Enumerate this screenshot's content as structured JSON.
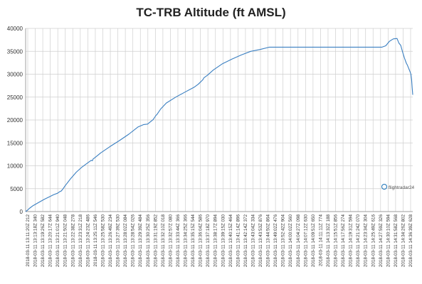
{
  "chart_data": {
    "type": "line",
    "title": "TC-TRB Altitude (ft AMSL)",
    "xlabel": "",
    "ylabel": "",
    "ylim": [
      0,
      40000
    ],
    "yticks": [
      "0",
      "5000",
      "10000",
      "15000",
      "20000",
      "25000",
      "30000",
      "35000",
      "40000"
    ],
    "grid": true,
    "line_color": "#3a7fc1",
    "x_tick_labels": [
      "2018-03-11 13:11:20Z 212",
      "2018-03-11 13:13:18Z 340",
      "2018-03-11 13:19:26Z 582",
      "2018-03-11 13:20:17Z 644",
      "2018-03-11 13:21:01Z 940",
      "2018-03-11 13:21:50Z 048",
      "2018-03-11 13:22:38Z 278",
      "2018-03-11 13:23:31Z 218",
      "2018-03-11 13:24:23Z 486",
      "2018-03-11 13:25:11Z 546",
      "2018-03-11 13:25:58Z 530",
      "2018-03-11 13:26:49Z 234",
      "2018-03-11 13:27:39Z 530",
      "2018-03-11 13:28:02Z 084",
      "2018-03-11 13:28:54Z 026",
      "2018-03-11 13:29:39Z 484",
      "2018-03-11 13:30:25Z 356",
      "2018-03-11 13:31:19Z 852",
      "2018-03-11 13:32:10Z 018",
      "2018-03-11 13:32:57Z 080",
      "2018-03-11 13:33:44Z 366",
      "2018-03-11 13:34:25Z 366",
      "2018-03-11 13:35:15Z 544",
      "2018-03-11 13:36:04Z 586",
      "2018-03-11 13:37:18Z 970",
      "2018-03-11 13:38:17Z 894",
      "2018-03-11 13:39:15Z 030",
      "2018-03-11 13:40:15Z 464",
      "2018-03-11 13:41:14Z 896",
      "2018-03-11 13:42:14Z 372",
      "2018-03-11 13:43:04Z 334",
      "2018-03-11 13:43:53Z 876",
      "2018-03-11 13:44:50Z 864",
      "2018-03-11 13:49:02Z 476",
      "2018-03-11 13:52:42Z 904",
      "2018-03-11 14:00:02Z 560",
      "2018-03-11 14:04:27Z 098",
      "2018-03-11 14:07:12Z 630",
      "2018-03-11 14:09:51Z 650",
      "2018-03-11 14:11:11Z 774",
      "2018-03-11 14:13:32Z 188",
      "2018-03-11 14:15:51Z 856",
      "2018-03-11 14:17:56Z 274",
      "2018-03-11 14:19:31Z 594",
      "2018-03-11 14:21:24Z 070",
      "2018-03-11 14:23:34Z 304",
      "2018-03-11 14:25:49Z 616",
      "2018-03-11 14:27:59Z 326",
      "2018-03-11 14:30:10Z 594",
      "2018-03-11 14:31:58Z 568",
      "2018-03-11 14:34:26Z 802",
      "2018-03-11 14:36:39Z 628"
    ],
    "series": [
      {
        "x": [
          0,
          1,
          2,
          4,
          7,
          10,
          13,
          15,
          17,
          18,
          19,
          19.6,
          20,
          21,
          24,
          27,
          30,
          33,
          35,
          35.6,
          36,
          37,
          40,
          45,
          50,
          55,
          60,
          63,
          65,
          68,
          69.5,
          70,
          72,
          75,
          80,
          85,
          90,
          92,
          94,
          94.5,
          95,
          97,
          100,
          105,
          110,
          115,
          120,
          125,
          130,
          135,
          140,
          145,
          150,
          155,
          160,
          165,
          170,
          175,
          180,
          185,
          190,
          192,
          194,
          196,
          198,
          198.5,
          199,
          200,
          201,
          202,
          203,
          203.5,
          204,
          204.5,
          205,
          205.4,
          205.8,
          206.1,
          206.4
        ],
        "y": [
          0,
          300,
          700,
          1300,
          2000,
          2700,
          3300,
          3700,
          4000,
          4300,
          4500,
          4800,
          5000,
          5600,
          7200,
          8600,
          9700,
          10600,
          11200,
          11100,
          11500,
          11800,
          12800,
          14200,
          15500,
          16900,
          18500,
          19000,
          19100,
          20100,
          21000,
          21200,
          22400,
          23700,
          25000,
          26100,
          27200,
          27800,
          28600,
          28800,
          29200,
          29800,
          30900,
          32300,
          33300,
          34200,
          35000,
          35400,
          35900,
          35900,
          35900,
          35900,
          35900,
          35900,
          35900,
          35900,
          35900,
          35900,
          35900,
          35900,
          35900,
          36200,
          37200,
          37700,
          37800,
          37300,
          36800,
          36300,
          34800,
          33500,
          32400,
          32000,
          31500,
          31000,
          30500,
          30000,
          28800,
          27000,
          25500
        ]
      }
    ],
    "watermark": "flightradar24"
  }
}
